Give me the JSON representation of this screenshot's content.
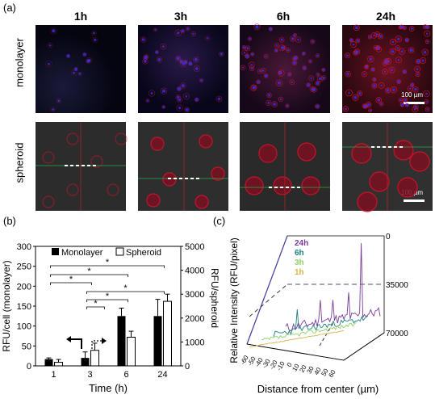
{
  "panels": {
    "a": "(a)",
    "b": "(b)",
    "c": "(c)"
  },
  "times": [
    "1h",
    "3h",
    "6h",
    "24h"
  ],
  "rows": {
    "monolayer": "monolayer",
    "spheroid": "spheroid"
  },
  "scalebars": {
    "top": "100 µm",
    "bottom": "100 µm"
  },
  "colors": {
    "nucleus": "#3a36ff",
    "membrane": "#e0102a",
    "c24h": "#7a3a9a",
    "c6h": "#1e7f7f",
    "c3h": "#8fd16a",
    "c1h": "#d6b44a"
  },
  "chart_data": [
    {
      "type": "bar",
      "categories": [
        "1",
        "3",
        "6",
        "24"
      ],
      "xlabel": "Time (h)",
      "ylabel": "RFU/cell (monolayer)",
      "ylabel_right": "RFU/spheroid",
      "ylim": [
        0,
        300
      ],
      "ylim_right": [
        0,
        5000
      ],
      "yticks": [
        "0",
        "50",
        "100",
        "150",
        "200",
        "250",
        "300"
      ],
      "yticks_right": [
        "0",
        "1000",
        "2000",
        "3000",
        "4000",
        "5000"
      ],
      "legend": [
        "Monolayer",
        "Spheroid"
      ],
      "legend_position": "top",
      "series": [
        {
          "name": "Monolayer",
          "values": [
            17,
            20,
            125,
            125
          ],
          "errors": [
            3,
            15,
            20,
            42
          ],
          "axis": "left"
        },
        {
          "name": "Spheroid",
          "values": [
            150,
            650,
            1200,
            2700
          ],
          "errors": [
            120,
            300,
            250,
            300
          ],
          "axis": "right"
        }
      ],
      "significance": [
        "*",
        "*",
        "*",
        "*",
        "*",
        "*"
      ]
    },
    {
      "type": "line",
      "xlabel": "Distance from center (µm)",
      "ylabel": "Relative Intensity (RFU/pixel)",
      "xticks": [
        "-60",
        "-50",
        "-40",
        "-30",
        "-20",
        "-10",
        "0",
        "10",
        "20",
        "30",
        "40",
        "50",
        "60"
      ],
      "zticks": [
        "0",
        "35000",
        "70000"
      ],
      "legend": [
        "24h",
        "6h",
        "3h",
        "1h"
      ],
      "legend_position": "top-left"
    }
  ]
}
